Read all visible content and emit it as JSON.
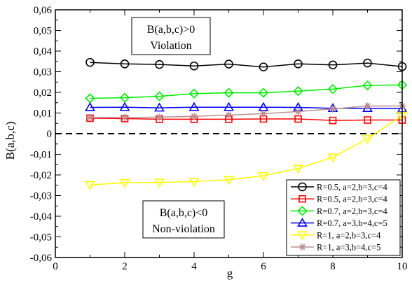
{
  "chart_data": {
    "type": "line",
    "xlabel": "g",
    "ylabel": "B(a,b,c)",
    "xlim": [
      0,
      10
    ],
    "ylim": [
      -0.06,
      0.06
    ],
    "x_ticks": [
      0,
      2,
      4,
      6,
      8,
      10
    ],
    "x_minor_step": 1,
    "y_ticks": [
      -0.06,
      -0.05,
      -0.04,
      -0.03,
      -0.02,
      -0.01,
      0,
      0.01,
      0.02,
      0.03,
      0.04,
      0.05,
      0.06
    ],
    "y_tick_labels": [
      "-0,06",
      "-0,05",
      "-0,04",
      "-0,03",
      "-0,02",
      "-0,01",
      "0",
      "0,01",
      "0,02",
      "0,03",
      "0,04",
      "0,05",
      "0,06"
    ],
    "reference_line": {
      "y": 0,
      "style": "dashed"
    },
    "legend_position": "bottom-right",
    "grid": false,
    "x": [
      1,
      2,
      3,
      4,
      5,
      6,
      7,
      8,
      9,
      10
    ],
    "series": [
      {
        "name": "R=0.5, a=2,b=3,c=4",
        "color": "#000000",
        "marker": "circle",
        "values": [
          0.0345,
          0.0338,
          0.0335,
          0.0328,
          0.0337,
          0.0323,
          0.0338,
          0.0333,
          0.0342,
          0.0325
        ]
      },
      {
        "name": "R=0.5, a=2,b=3,c=4",
        "color": "#ff0000",
        "marker": "square",
        "values": [
          0.0075,
          0.0073,
          0.007,
          0.007,
          0.007,
          0.0071,
          0.0071,
          0.0064,
          0.0066,
          0.0066
        ]
      },
      {
        "name": "R=0.7, a=2,b=3,c=4",
        "color": "#00ee00",
        "marker": "diamond",
        "values": [
          0.0171,
          0.0174,
          0.0181,
          0.0194,
          0.0198,
          0.0198,
          0.0206,
          0.0216,
          0.0234,
          0.0236
        ]
      },
      {
        "name": "R=0.7, a=3,b=4,c=5",
        "color": "#0000ff",
        "marker": "triangle-up",
        "values": [
          0.0127,
          0.0128,
          0.0125,
          0.0128,
          0.0128,
          0.0128,
          0.0127,
          0.0123,
          0.0123,
          0.0121
        ]
      },
      {
        "name": "R=1, a=2,b=3,c=4",
        "color": "#ffff00",
        "marker": "triangle-down",
        "values": [
          -0.0248,
          -0.0238,
          -0.0236,
          -0.0232,
          -0.0223,
          -0.0204,
          -0.0169,
          -0.0114,
          -0.0025,
          0.0088
        ]
      },
      {
        "name": "R=1, a=3,b=4,c=5",
        "color": "#bc8f8f",
        "marker": "star",
        "values": [
          0.0078,
          0.0078,
          0.008,
          0.0084,
          0.009,
          0.0097,
          0.0107,
          0.012,
          0.0134,
          0.0134
        ]
      }
    ],
    "annotations": [
      {
        "lines": [
          "B(a,b,c)>0",
          "Violation"
        ]
      },
      {
        "lines": [
          "B(a,b,c)<0",
          "Non-violation"
        ]
      }
    ]
  }
}
